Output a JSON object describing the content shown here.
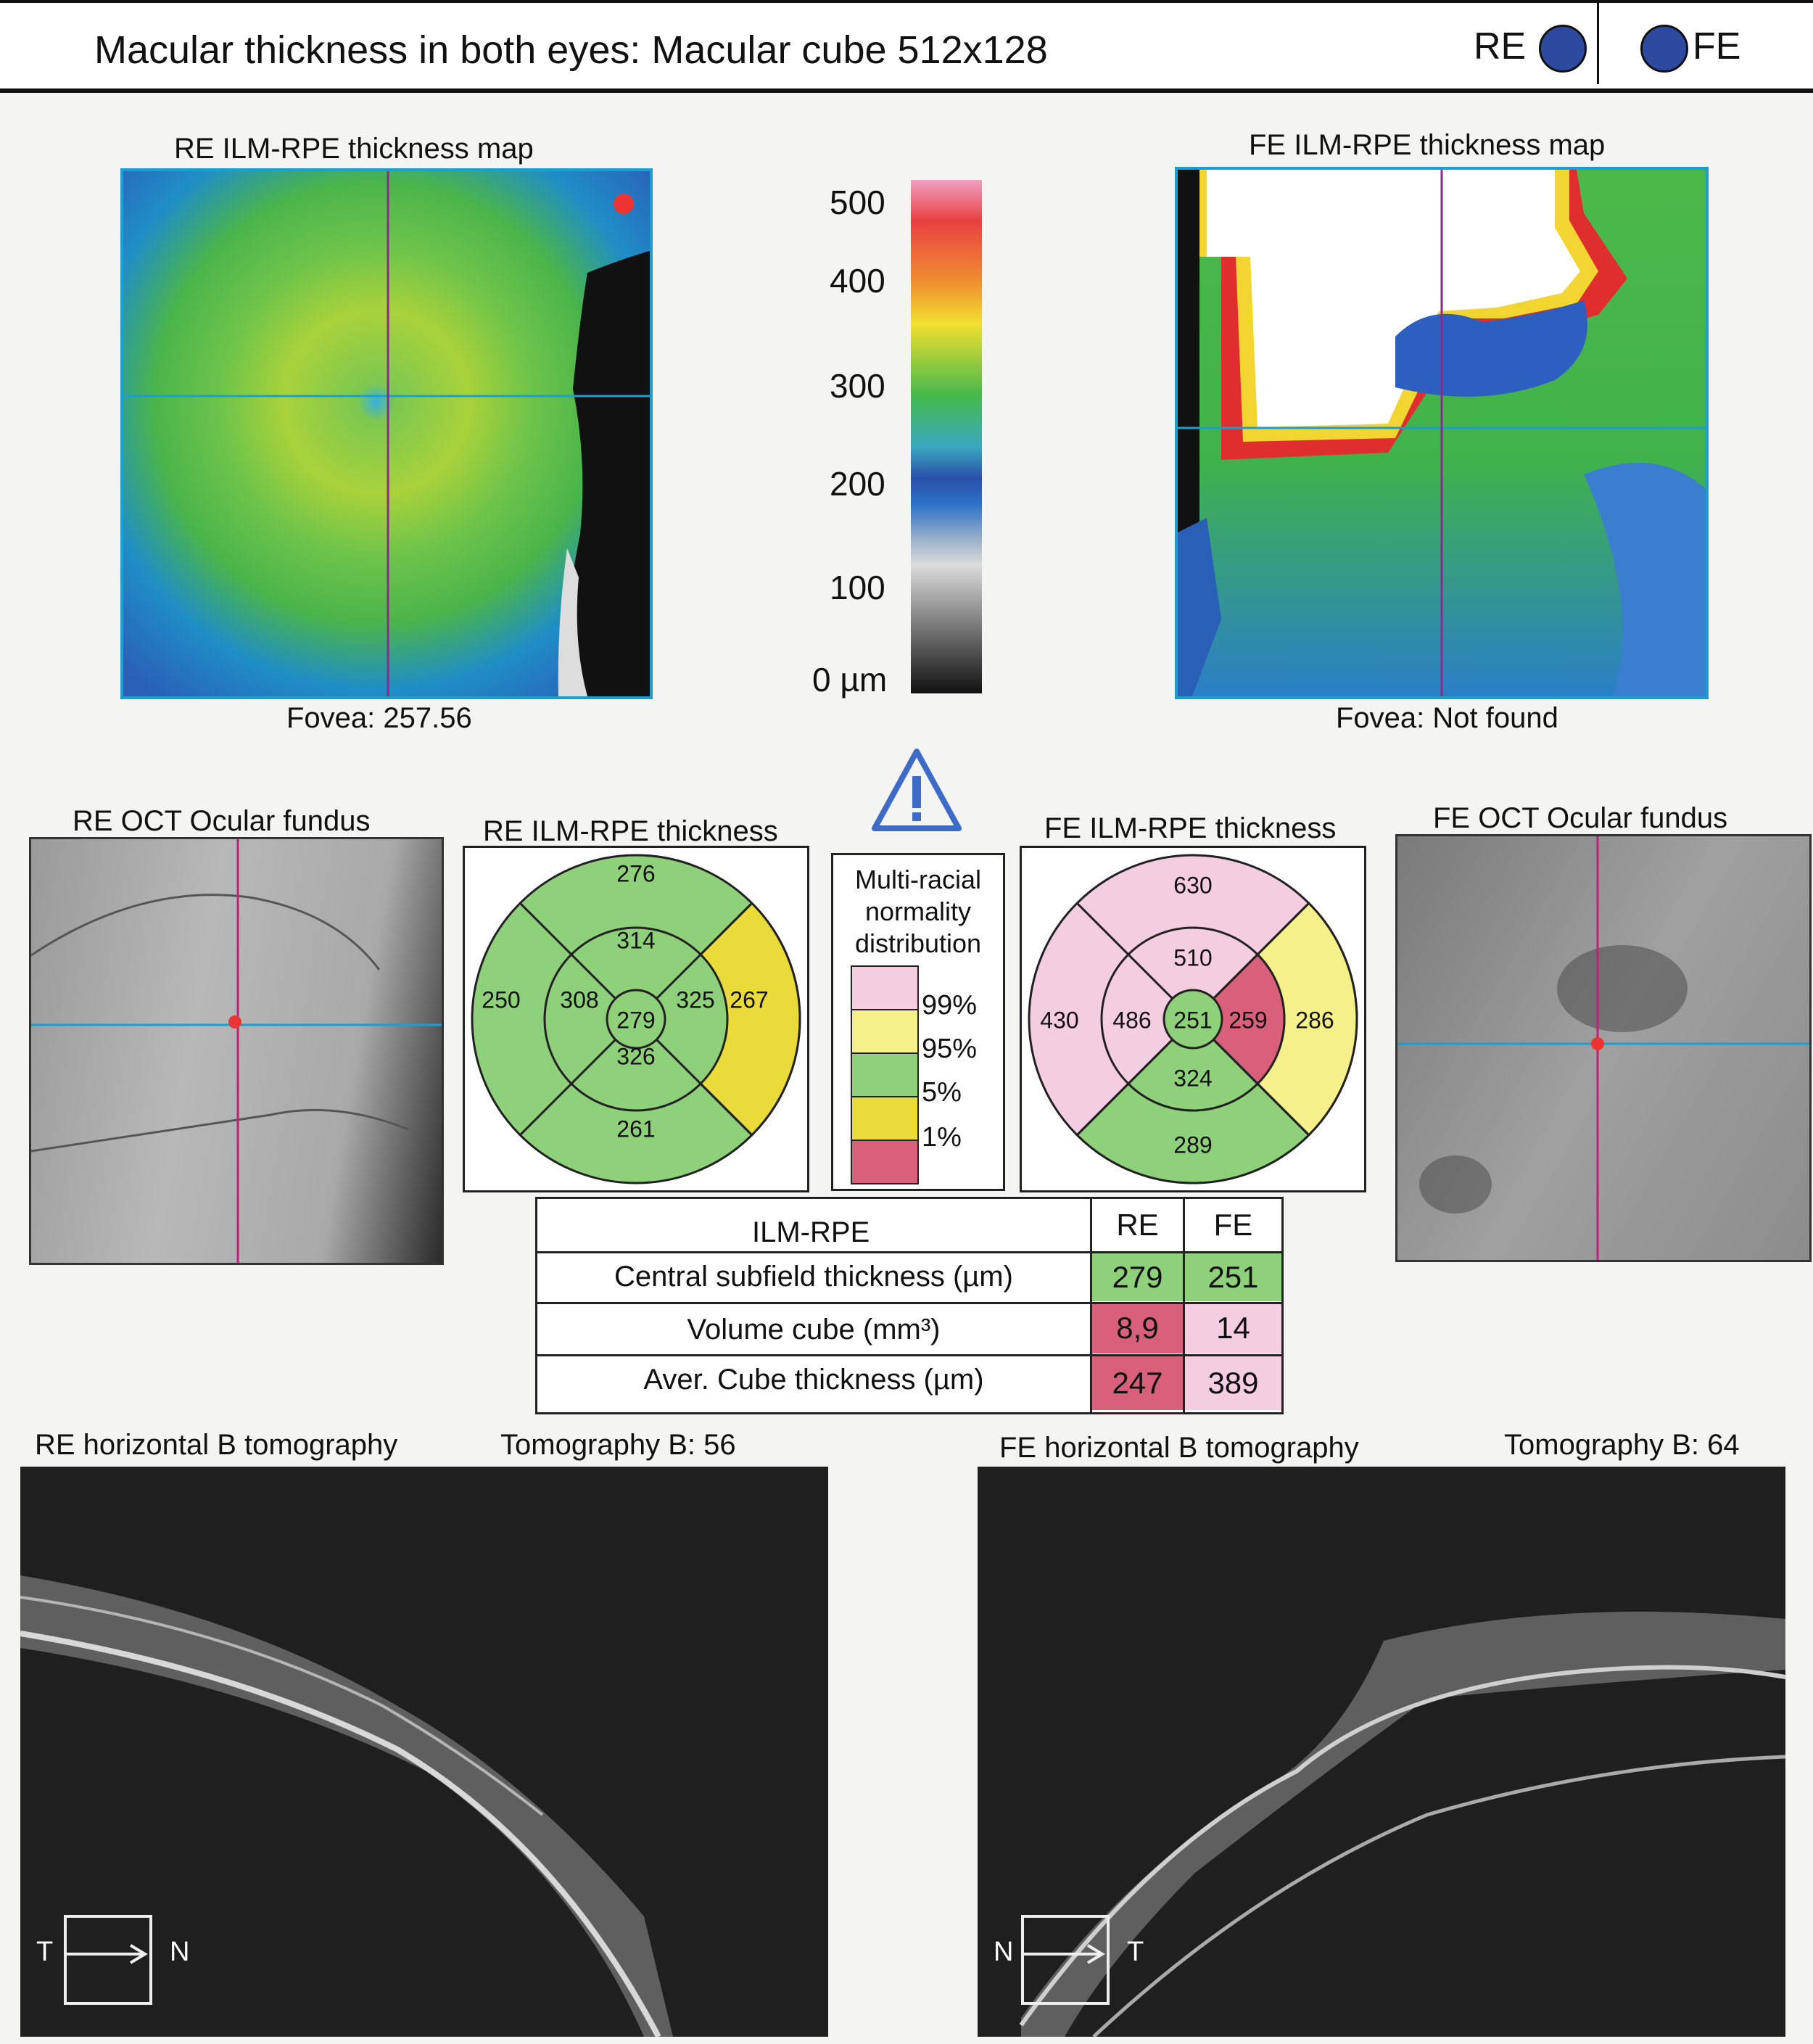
{
  "header": {
    "title": "Macular thickness in both eyes: Macular cube 512x128",
    "right_eye": "RE",
    "left_eye": "FE",
    "eye_color": "#2d4a9e"
  },
  "maps": {
    "re_title": "RE ILM-RPE thickness map",
    "fe_title": "FE ILM-RPE thickness map",
    "re_fovea": "Fovea: 257.56",
    "fe_fovea": "Fovea: Not found"
  },
  "scale": {
    "ticks": [
      "500",
      "400",
      "300",
      "200",
      "100",
      "0 µm"
    ]
  },
  "fundus": {
    "re_title": "RE OCT Ocular fundus",
    "fe_title": "FE OCT Ocular fundus"
  },
  "grids": {
    "re_title": "RE ILM-RPE thickness",
    "fe_title": "FE ILM-RPE thickness",
    "re": {
      "center": "279",
      "inner_sup": "314",
      "inner_inf": "326",
      "inner_temp": "308",
      "inner_nas": "325",
      "outer_sup": "276",
      "outer_inf": "261",
      "outer_temp": "250",
      "outer_nas": "267"
    },
    "fe": {
      "center": "251",
      "inner_sup": "510",
      "inner_inf": "324",
      "inner_temp": "486",
      "inner_nas": "259",
      "outer_sup": "630",
      "outer_inf": "289",
      "outer_temp": "430",
      "outer_nas": "286"
    }
  },
  "normality": {
    "title_lines": [
      "Multi-racial",
      "normality",
      "distribution"
    ],
    "levels": [
      "99%",
      "95%",
      "5%",
      "1%"
    ],
    "colors": {
      "pink": "#f5cde0",
      "lightyellow": "#f6f08a",
      "green": "#8fd07a",
      "yellow": "#eadb3a",
      "red": "#d9607a"
    }
  },
  "table": {
    "header": "ILM-RPE",
    "col_re": "RE",
    "col_fe": "FE",
    "rows": [
      {
        "label": "Central subfield thickness (µm)",
        "re": "279",
        "fe": "251"
      },
      {
        "label": "Volume cube (mm³)",
        "re": "8,9",
        "fe": "14"
      },
      {
        "label": "Aver. Cube thickness (µm)",
        "re": "247",
        "fe": "389"
      }
    ]
  },
  "tomography": {
    "re_title": "RE horizontal B tomography",
    "re_b": "Tomography B: 56",
    "fe_title": "FE horizontal B tomography",
    "fe_b": "Tomography B: 64",
    "re_left": "T",
    "re_right": "N",
    "fe_left": "N",
    "fe_right": "T"
  },
  "icons": [
    "warning-icon",
    "arrow-right-icon"
  ]
}
